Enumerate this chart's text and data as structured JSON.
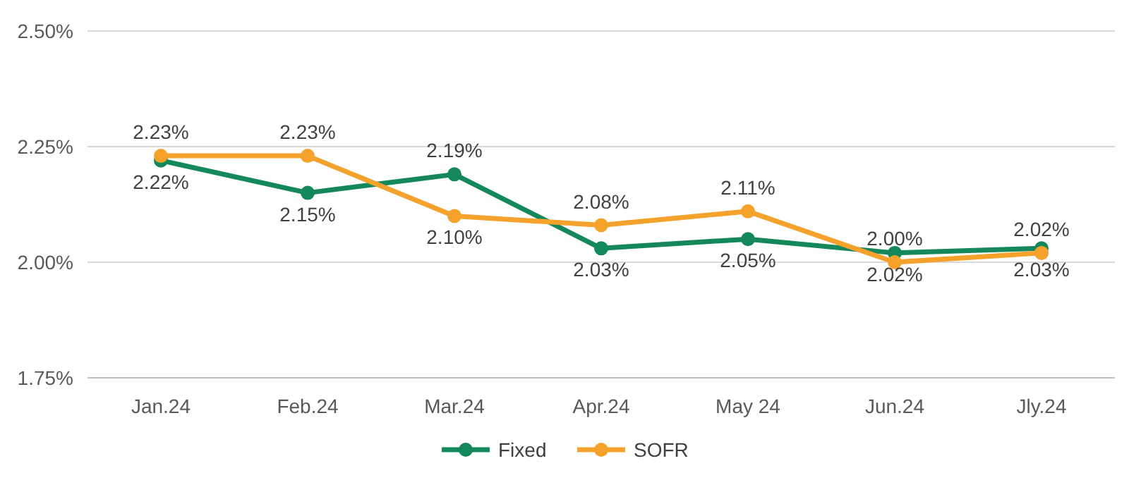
{
  "chart_data": {
    "type": "line",
    "categories": [
      "Jan.24",
      "Feb.24",
      "Mar.24",
      "Apr.24",
      "May 24",
      "Jun.24",
      "Jly.24"
    ],
    "series": [
      {
        "name": "Fixed",
        "color": "#14885a",
        "values": [
          2.22,
          2.15,
          2.19,
          2.03,
          2.05,
          2.02,
          2.03
        ],
        "value_labels": [
          "2.22%",
          "2.15%",
          "2.19%",
          "2.03%",
          "2.05%",
          "2.02%",
          "2.03%"
        ]
      },
      {
        "name": "SOFR",
        "color": "#f5a22c",
        "values": [
          2.23,
          2.23,
          2.1,
          2.08,
          2.11,
          2.0,
          2.02
        ],
        "value_labels": [
          "2.23%",
          "2.23%",
          "2.10%",
          "2.08%",
          "2.11%",
          "2.00%",
          "2.02%"
        ]
      }
    ],
    "ylim": [
      1.75,
      2.5
    ],
    "yticks": [
      {
        "value": 1.75,
        "label": "1.75%"
      },
      {
        "value": 2,
        "label": "2.00%"
      },
      {
        "value": 2.25,
        "label": "2.25%"
      },
      {
        "value": 2.5,
        "label": "2.50%"
      }
    ],
    "grid": "y",
    "legend": "bottom",
    "marker": "circle",
    "line_style": "solid"
  }
}
